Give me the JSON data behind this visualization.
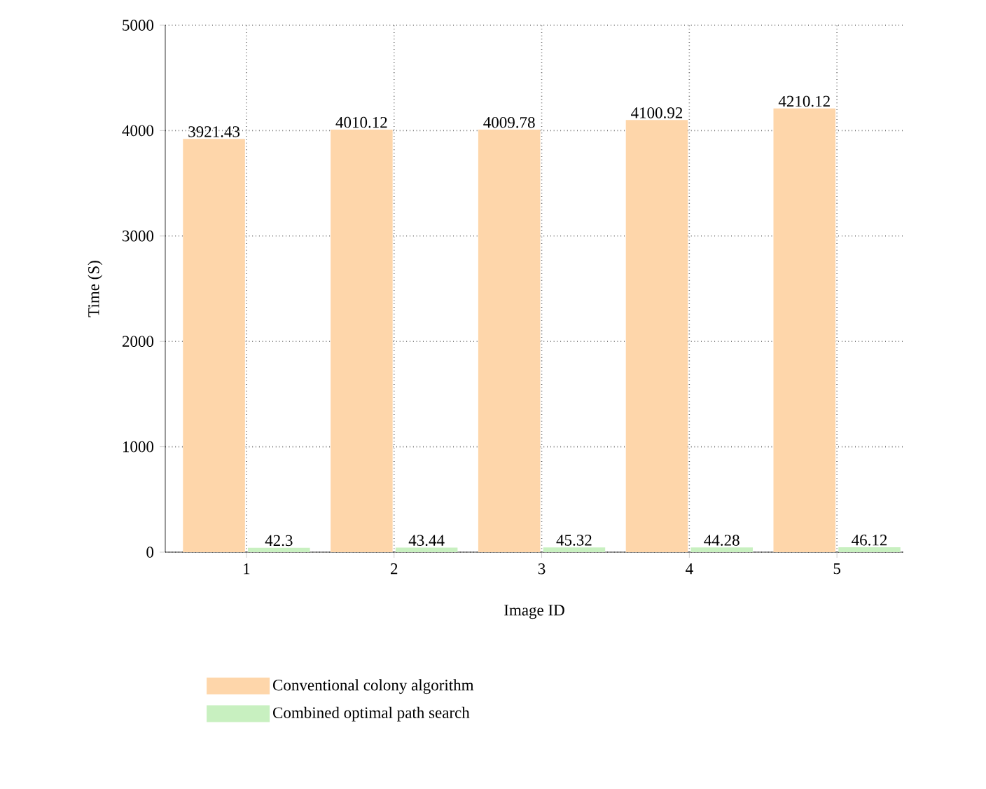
{
  "chart_data": {
    "type": "bar",
    "xlabel": "Image ID",
    "ylabel": "Time (S)",
    "categories": [
      "1",
      "2",
      "3",
      "4",
      "5"
    ],
    "series": [
      {
        "name": "Conventional colony algorithm",
        "color": "#fed6aa",
        "values": [
          3921.43,
          4010.12,
          4009.78,
          4100.92,
          4210.12
        ]
      },
      {
        "name": "Combined optimal path search",
        "color": "#c8f0c0",
        "values": [
          42.3,
          43.44,
          45.32,
          44.28,
          46.12
        ]
      }
    ],
    "ylim": [
      0,
      5000
    ],
    "yticks": [
      0,
      1000,
      2000,
      3000,
      4000,
      5000
    ],
    "grid": true,
    "data_labels": true,
    "legend": "bottom"
  }
}
